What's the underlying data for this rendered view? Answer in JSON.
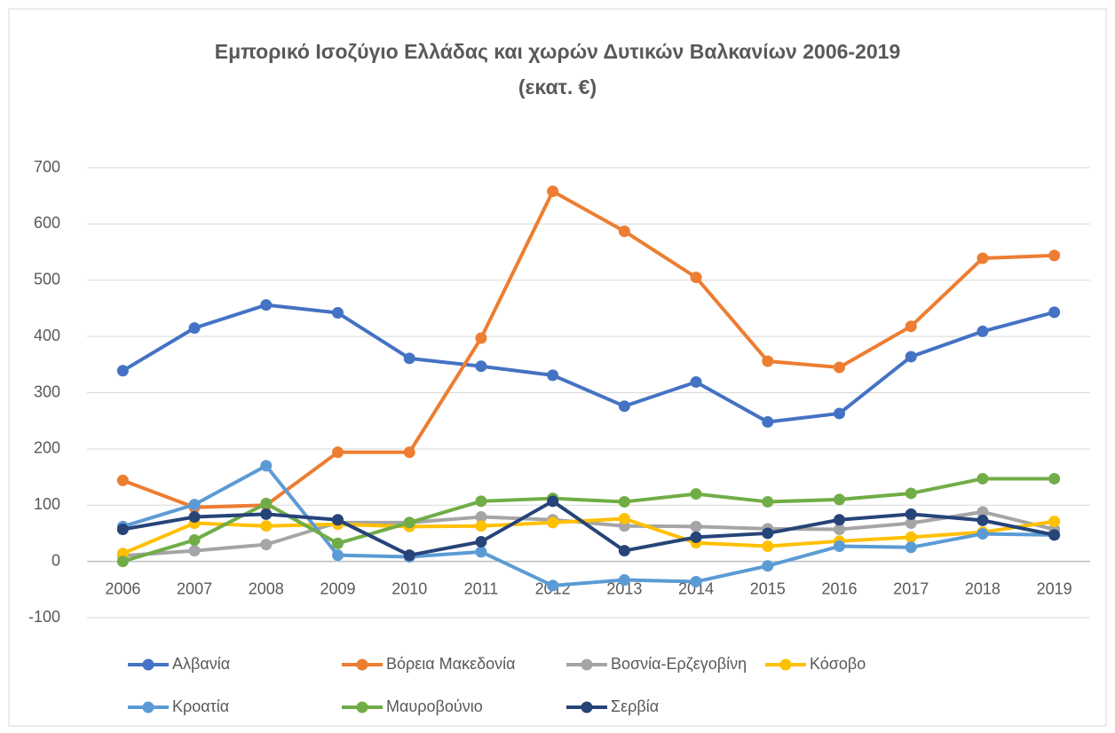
{
  "chart_data": {
    "type": "line",
    "title": [
      "Εμπορικό Ισοζύγιο Ελλάδας και χωρών Δυτικών Βαλκανίων 2006-2019",
      "(εκατ. €)"
    ],
    "categories": [
      "2006",
      "2007",
      "2008",
      "2009",
      "2010",
      "2011",
      "2012",
      "2013",
      "2014",
      "2015",
      "2016",
      "2017",
      "2018",
      "2019"
    ],
    "ylim": [
      -100,
      700
    ],
    "yticks": [
      -100,
      0,
      100,
      200,
      300,
      400,
      500,
      600,
      700
    ],
    "grid": true,
    "legend": "bottom",
    "series": [
      {
        "name": "Αλβανία",
        "color": "#4472c4",
        "values": [
          339,
          415,
          456,
          442,
          361,
          347,
          331,
          276,
          319,
          248,
          263,
          364,
          409,
          443
        ]
      },
      {
        "name": "Βόρεια Μακεδονία",
        "color": "#ed7d31",
        "values": [
          144,
          96,
          100,
          194,
          194,
          397,
          658,
          587,
          505,
          356,
          345,
          418,
          539,
          544
        ]
      },
      {
        "name": "Βοσνία-Ερζεγοβίνη",
        "color": "#a5a5a5",
        "values": [
          10,
          19,
          30,
          69,
          69,
          79,
          74,
          63,
          62,
          58,
          57,
          68,
          88,
          57
        ]
      },
      {
        "name": "Κόσοβο",
        "color": "#ffc000",
        "values": [
          14,
          68,
          63,
          66,
          62,
          63,
          69,
          76,
          33,
          27,
          36,
          43,
          52,
          71
        ]
      },
      {
        "name": "Κροατία",
        "color": "#5b9bd5",
        "values": [
          62,
          101,
          170,
          11,
          8,
          17,
          -43,
          -33,
          -36,
          -8,
          27,
          25,
          49,
          47
        ]
      },
      {
        "name": "Μαυροβούνιο",
        "color": "#70ad47",
        "values": [
          0,
          38,
          103,
          32,
          69,
          107,
          112,
          106,
          120,
          106,
          110,
          121,
          147,
          147
        ]
      },
      {
        "name": "Σερβία",
        "color": "#264478",
        "values": [
          57,
          79,
          84,
          74,
          11,
          35,
          107,
          19,
          43,
          50,
          74,
          84,
          73,
          47
        ]
      }
    ]
  }
}
